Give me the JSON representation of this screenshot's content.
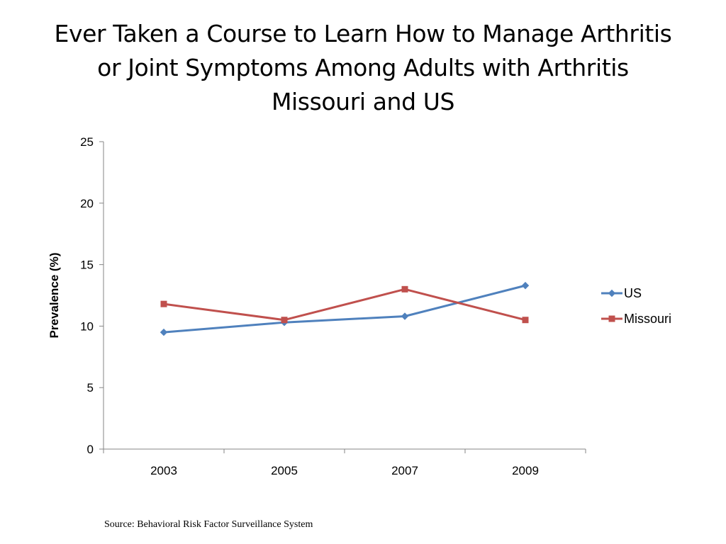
{
  "title_lines": [
    "Ever Taken a Course to Learn How to Manage Arthritis",
    "or Joint Symptoms Among Adults with Arthritis",
    "Missouri and US"
  ],
  "source": "Source: Behavioral Risk Factor Surveillance System",
  "chart_data": {
    "type": "line",
    "title": "Ever Taken a Course to Learn How to Manage Arthritis or Joint Symptoms Among Adults with Arthritis Missouri and US",
    "xlabel": "",
    "ylabel": "Prevalence (%)",
    "categories": [
      "2003",
      "2005",
      "2007",
      "2009"
    ],
    "ylim": [
      0,
      25
    ],
    "yticks": [
      0,
      5,
      10,
      15,
      20,
      25
    ],
    "grid": false,
    "legend_position": "right",
    "series": [
      {
        "name": "US",
        "values": [
          9.5,
          10.3,
          10.8,
          13.3
        ],
        "color": "#4F81BD",
        "marker": "diamond"
      },
      {
        "name": "Missouri",
        "values": [
          11.8,
          10.5,
          13.0,
          10.5
        ],
        "color": "#C0504D",
        "marker": "square"
      }
    ]
  }
}
